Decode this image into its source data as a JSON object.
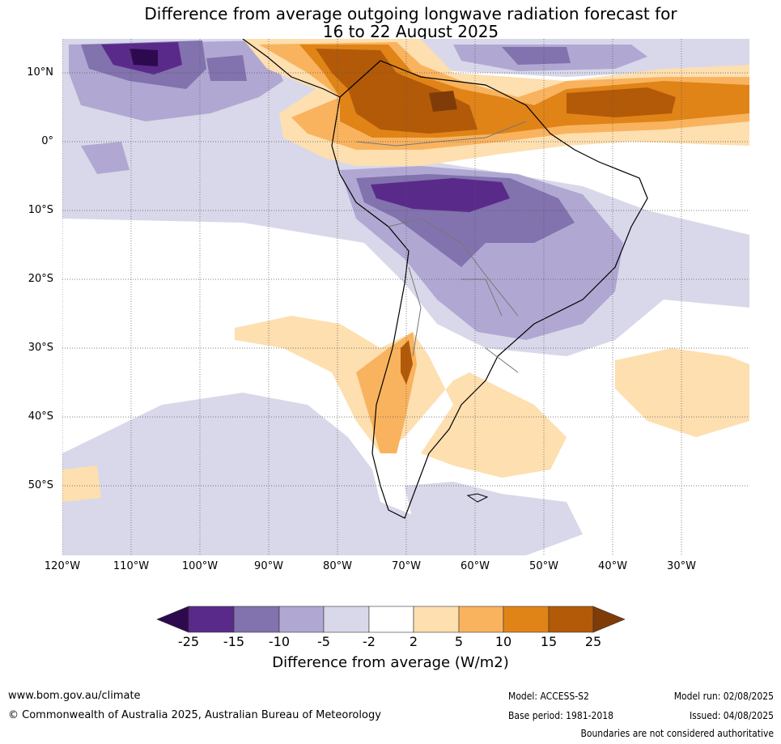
{
  "header": {
    "title_line1": "Difference from average outgoing longwave radiation forecast for",
    "title_line2": "16 to 22 August 2025"
  },
  "map": {
    "region": "South America",
    "lat_labels": [
      "10°N",
      "0°",
      "10°S",
      "20°S",
      "30°S",
      "40°S",
      "50°S"
    ],
    "lon_labels": [
      "120°W",
      "110°W",
      "100°W",
      "90°W",
      "80°W",
      "70°W",
      "60°W",
      "50°W",
      "40°W",
      "30°W"
    ]
  },
  "colorbar": {
    "title": "Difference from average (W/m2)",
    "ticks": [
      "-25",
      "-15",
      "-10",
      "-5",
      "-2",
      "2",
      "5",
      "10",
      "15",
      "25"
    ],
    "colors": {
      "below_min": "#2d0a4e",
      "c1": "#5a2a8a",
      "c2": "#8272ae",
      "c3": "#b0a8d2",
      "c4": "#d8d8ea",
      "c5": "#ffffff",
      "c6": "#fddfb0",
      "c7": "#f9b35e",
      "c8": "#e08418",
      "c9": "#b35a08",
      "above_max": "#7f3b08"
    }
  },
  "footer": {
    "website": "www.bom.gov.au/climate",
    "copyright": "© Commonwealth of Australia 2025, Australian Bureau of Meteorology",
    "model": "Model: ACCESS-S2",
    "base_period": "Base period: 1981-2018",
    "model_run": "Model run: 02/08/2025",
    "issued": "Issued: 04/08/2025",
    "disclaimer": "Boundaries are not considered authoritative"
  }
}
